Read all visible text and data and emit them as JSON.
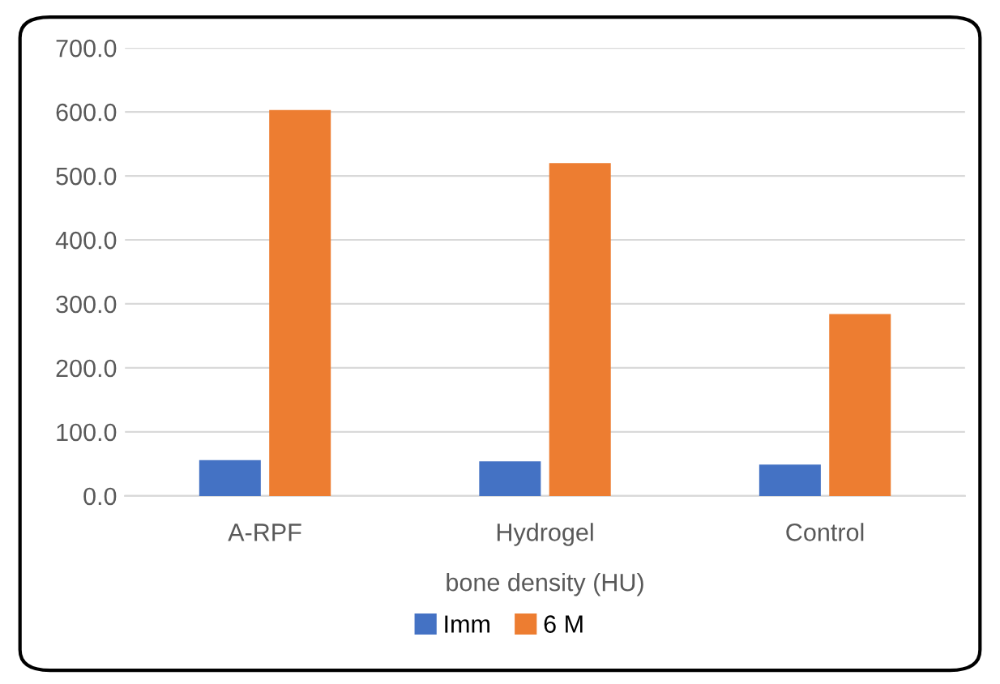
{
  "chart_data": {
    "type": "bar",
    "xlabel": "bone density (HU)",
    "categories": [
      "A-RPF",
      "Hydrogel",
      "Control"
    ],
    "series": [
      {
        "name": "Imm",
        "color": "#4472c4",
        "values": [
          56,
          54,
          49
        ]
      },
      {
        "name": "6 M",
        "color": "#ed7d31",
        "values": [
          603,
          520,
          284
        ]
      }
    ],
    "ylim": [
      0,
      700
    ],
    "yticks": [
      {
        "value": 0,
        "label": "0.0"
      },
      {
        "value": 100,
        "label": "100.0"
      },
      {
        "value": 200,
        "label": "200.0"
      },
      {
        "value": 300,
        "label": "300.0"
      },
      {
        "value": 400,
        "label": "400.0"
      },
      {
        "value": 500,
        "label": "500.0"
      },
      {
        "value": 600,
        "label": "600.0"
      },
      {
        "value": 700,
        "label": "700.0"
      }
    ],
    "grid": "y",
    "legend": "bottom"
  }
}
